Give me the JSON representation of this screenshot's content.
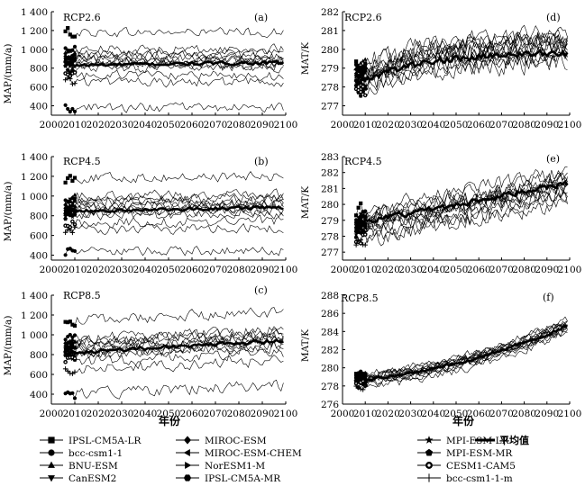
{
  "figure": {
    "xlabel": "年份",
    "legend": {
      "entries": [
        {
          "name": "IPSL-CM5A-LR",
          "marker": "square"
        },
        {
          "name": "bcc-csm1-1",
          "marker": "circle"
        },
        {
          "name": "BNU-ESM",
          "marker": "triangle-up"
        },
        {
          "name": "CanESM2",
          "marker": "triangle-down"
        },
        {
          "name": "MIROC-ESM",
          "marker": "diamond"
        },
        {
          "name": "MIROC-ESM-CHEM",
          "marker": "triangle-left"
        },
        {
          "name": "NorESM1-M",
          "marker": "triangle-right"
        },
        {
          "name": "IPSL-CM5A-MR",
          "marker": "hexagon"
        },
        {
          "name": "MPI-ESM-LR",
          "marker": "star"
        },
        {
          "name": "MPI-ESM-MR",
          "marker": "pentagon"
        },
        {
          "name": "CESM1-CAM5",
          "marker": "circle-dot"
        },
        {
          "name": "bcc-csm1-1-m",
          "marker": "plus"
        },
        {
          "name": "平均值",
          "marker": "thick-line"
        }
      ]
    }
  },
  "chart_data": [
    {
      "id": "a",
      "type": "line",
      "panel_label": "(a)",
      "scenario": "RCP2.6",
      "ylabel": "MAP/(mm/a)",
      "xlim": [
        2000,
        2100
      ],
      "ylim": [
        300,
        1400
      ],
      "xticks": [
        2000,
        2010,
        2020,
        2030,
        2040,
        2050,
        2060,
        2070,
        2080,
        2090,
        2100
      ],
      "yticks": [
        400,
        600,
        800,
        1000,
        1200,
        1400
      ],
      "ytick_labels": [
        "400",
        "600",
        "800",
        "1 000",
        "1 200",
        "1 400"
      ],
      "series_start": 2006,
      "series_end": 2099,
      "series_levels": [
        1180,
        1000,
        950,
        930,
        910,
        890,
        870,
        850,
        830,
        800,
        720,
        650,
        380
      ],
      "series_trend": 0,
      "noise": 45,
      "mean": {
        "start": 830,
        "end": 860
      }
    },
    {
      "id": "b",
      "type": "line",
      "panel_label": "(b)",
      "scenario": "RCP4.5",
      "ylabel": "MAP/(mm/a)",
      "xlim": [
        2000,
        2100
      ],
      "ylim": [
        350,
        1400
      ],
      "xticks": [
        2000,
        2010,
        2020,
        2030,
        2040,
        2050,
        2060,
        2070,
        2080,
        2090,
        2100
      ],
      "yticks": [
        400,
        600,
        800,
        1000,
        1200,
        1400
      ],
      "ytick_labels": [
        "400",
        "600",
        "800",
        "1 000",
        "1 200",
        "1 400"
      ],
      "series_start": 2006,
      "series_end": 2099,
      "series_levels": [
        1180,
        1000,
        960,
        940,
        915,
        895,
        875,
        855,
        830,
        800,
        730,
        660,
        430
      ],
      "series_trend": 20,
      "noise": 45,
      "mean": {
        "start": 840,
        "end": 885
      }
    },
    {
      "id": "c",
      "type": "line",
      "panel_label": "(c)",
      "scenario": "RCP8.5",
      "ylabel": "MAP/(mm/a)",
      "xlim": [
        2000,
        2100
      ],
      "ylim": [
        300,
        1400
      ],
      "xticks": [
        2000,
        2010,
        2020,
        2030,
        2040,
        2050,
        2060,
        2070,
        2080,
        2090,
        2100
      ],
      "yticks": [
        400,
        600,
        800,
        1000,
        1200,
        1400
      ],
      "ytick_labels": [
        "400",
        "600",
        "800",
        "1 000",
        "1 200",
        "1 400"
      ],
      "series_start": 2006,
      "series_end": 2099,
      "series_levels": [
        1140,
        960,
        930,
        910,
        890,
        870,
        850,
        830,
        810,
        790,
        720,
        650,
        400
      ],
      "series_trend": 90,
      "noise": 50,
      "mean": {
        "start": 820,
        "end": 940
      }
    },
    {
      "id": "d",
      "type": "line",
      "panel_label": "(d)",
      "scenario": "RCP2.6",
      "ylabel": "MAT/K",
      "xlim": [
        2000,
        2100
      ],
      "ylim": [
        276.5,
        282
      ],
      "xticks": [
        2000,
        2010,
        2020,
        2030,
        2040,
        2050,
        2060,
        2070,
        2080,
        2090,
        2100
      ],
      "yticks": [
        277,
        278,
        279,
        280,
        281,
        282
      ],
      "ytick_labels": [
        "277",
        "278",
        "279",
        "280",
        "281",
        "282"
      ],
      "series_start": 2006,
      "series_end": 2099,
      "series_levels": [
        279.1,
        278.9,
        278.7,
        278.6,
        278.4,
        278.3,
        278.2,
        278.0,
        277.9,
        277.7,
        277.5,
        278.5,
        278.8
      ],
      "series_trend": 1.8,
      "saturate": true,
      "noise": 0.45,
      "mean": {
        "start": 278.2,
        "end": 279.8,
        "shape": "saturating"
      }
    },
    {
      "id": "e",
      "type": "line",
      "panel_label": "(e)",
      "scenario": "RCP4.5",
      "ylabel": "MAT/K",
      "xlim": [
        2000,
        2100
      ],
      "ylim": [
        276.5,
        283
      ],
      "xticks": [
        2000,
        2010,
        2020,
        2030,
        2040,
        2050,
        2060,
        2070,
        2080,
        2090,
        2100
      ],
      "yticks": [
        277,
        278,
        279,
        280,
        281,
        282,
        283
      ],
      "ytick_labels": [
        "277",
        "278",
        "279",
        "280",
        "281",
        "282",
        "283"
      ],
      "series_start": 2006,
      "series_end": 2099,
      "series_levels": [
        279.6,
        279.3,
        279.1,
        278.9,
        278.8,
        278.7,
        278.6,
        278.5,
        278.3,
        278.1,
        277.8,
        277.6,
        279.0
      ],
      "series_trend": 2.5,
      "noise": 0.45,
      "mean": {
        "start": 278.8,
        "end": 281.3
      }
    },
    {
      "id": "f",
      "type": "line",
      "panel_label": "(f)",
      "scenario": "RCP8.5",
      "ylabel": "MAT/K",
      "xlim": [
        2000,
        2100
      ],
      "ylim": [
        276,
        288
      ],
      "xticks": [
        2000,
        2010,
        2020,
        2030,
        2040,
        2050,
        2060,
        2070,
        2080,
        2090,
        2100
      ],
      "yticks": [
        276,
        278,
        280,
        282,
        284,
        286,
        288
      ],
      "ytick_labels": [
        "276",
        "278",
        "280",
        "282",
        "284",
        "286",
        "288"
      ],
      "series_start": 2006,
      "series_end": 2099,
      "series_levels": [
        279.3,
        279.1,
        279.0,
        278.9,
        278.8,
        278.7,
        278.6,
        278.5,
        278.4,
        278.3,
        278.1,
        277.8,
        278.9
      ],
      "series_trend": 6.0,
      "accelerate": true,
      "noise": 0.4,
      "mean": {
        "start": 278.6,
        "end": 284.6,
        "shape": "accelerating"
      }
    }
  ]
}
